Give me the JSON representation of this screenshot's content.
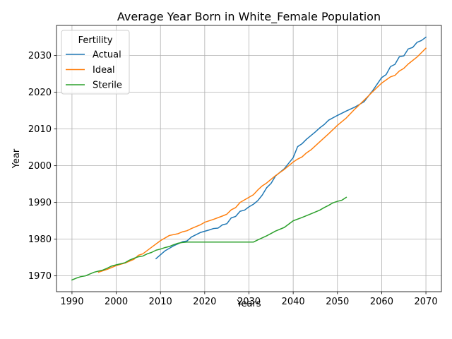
{
  "chart_data": {
    "type": "line",
    "title": "Average Year Born in White_Female Population",
    "xlabel": "Years",
    "ylabel": "Year",
    "xlim": [
      1986.5,
      2073.5
    ],
    "ylim": [
      1965.7,
      2038.2
    ],
    "xticks": [
      1990,
      2000,
      2010,
      2020,
      2030,
      2040,
      2050,
      2060,
      2070
    ],
    "yticks": [
      1970,
      1980,
      1990,
      2000,
      2010,
      2020,
      2030
    ],
    "grid": true,
    "legend": {
      "title": "Fertility",
      "position": "upper-left"
    },
    "series": [
      {
        "name": "Actual",
        "color": "#1f77b4",
        "x": [
          2009,
          2011,
          2013,
          2015,
          2016,
          2017,
          2019,
          2021,
          2022,
          2023,
          2024,
          2025,
          2026,
          2027,
          2028,
          2029,
          2030,
          2031,
          2032,
          2033,
          2034,
          2035,
          2036,
          2038,
          2040,
          2041,
          2042,
          2043,
          2045,
          2046,
          2047,
          2048,
          2050,
          2052,
          2054,
          2056,
          2058,
          2060,
          2061,
          2062,
          2063,
          2064,
          2065,
          2066,
          2067,
          2068,
          2069,
          2070
        ],
        "y": [
          1974.7,
          1976.8,
          1978.2,
          1979.3,
          1979.5,
          1980.6,
          1981.8,
          1982.5,
          1982.9,
          1983.0,
          1983.9,
          1984.2,
          1985.8,
          1986.2,
          1987.6,
          1987.9,
          1988.8,
          1989.5,
          1990.5,
          1992.0,
          1994.0,
          1995.2,
          1997.2,
          1999.2,
          2002.2,
          2005.2,
          2006.0,
          2007.2,
          2009.2,
          2010.3,
          2011.2,
          2012.4,
          2013.7,
          2014.9,
          2016.0,
          2017.4,
          2020.5,
          2024.0,
          2024.8,
          2027.0,
          2027.6,
          2029.7,
          2029.9,
          2031.8,
          2032.2,
          2033.6,
          2034.1,
          2035.0
        ]
      },
      {
        "name": "Ideal",
        "color": "#ff7f0e",
        "x": [
          1996,
          1998,
          2000,
          2002,
          2004,
          2005,
          2006,
          2008,
          2010,
          2012,
          2014,
          2015,
          2016,
          2017,
          2019,
          2020,
          2022,
          2024,
          2025,
          2026,
          2027,
          2028,
          2030,
          2031,
          2032,
          2033,
          2034,
          2036,
          2038,
          2040,
          2041,
          2042,
          2043,
          2044,
          2046,
          2048,
          2050,
          2052,
          2054,
          2056,
          2058,
          2060,
          2062,
          2063,
          2064,
          2065,
          2066,
          2068,
          2070
        ],
        "y": [
          1971.0,
          1971.8,
          1972.8,
          1973.5,
          1974.5,
          1975.6,
          1976.0,
          1977.8,
          1979.6,
          1981.0,
          1981.5,
          1982.0,
          1982.3,
          1982.9,
          1983.9,
          1984.6,
          1985.4,
          1986.3,
          1986.8,
          1988.0,
          1988.6,
          1990.0,
          1991.4,
          1992.1,
          1993.4,
          1994.5,
          1995.3,
          1997.3,
          1999.0,
          2001.0,
          2001.8,
          2002.4,
          2003.5,
          2004.3,
          2006.5,
          2008.7,
          2011.0,
          2013.0,
          2015.5,
          2017.8,
          2020.2,
          2022.5,
          2024.2,
          2024.6,
          2025.8,
          2026.5,
          2027.7,
          2029.6,
          2032.0
        ]
      },
      {
        "name": "Sterile",
        "color": "#2ca02c",
        "x": [
          1990,
          1991,
          1992,
          1993,
          1994,
          1995,
          1996,
          1997,
          1998,
          1999,
          2000,
          2001,
          2002,
          2003,
          2004,
          2005,
          2006,
          2007,
          2008,
          2009,
          2010,
          2011,
          2012,
          2013,
          2014,
          2015,
          2016,
          2020,
          2025,
          2031,
          2032,
          2034,
          2036,
          2038,
          2040,
          2042,
          2044,
          2046,
          2047,
          2048,
          2049,
          2050,
          2051,
          2052
        ],
        "y": [
          1968.9,
          1969.4,
          1969.8,
          1970.0,
          1970.5,
          1971.0,
          1971.3,
          1971.6,
          1972.1,
          1972.7,
          1973.0,
          1973.3,
          1973.6,
          1974.3,
          1974.8,
          1975.2,
          1975.4,
          1976.0,
          1976.4,
          1977.0,
          1977.3,
          1977.7,
          1978.0,
          1978.5,
          1978.9,
          1979.1,
          1979.2,
          1979.2,
          1979.2,
          1979.2,
          1979.8,
          1980.9,
          1982.2,
          1983.2,
          1985.0,
          1985.9,
          1986.9,
          1987.9,
          1988.6,
          1989.2,
          1989.9,
          1990.3,
          1990.6,
          1991.4
        ]
      }
    ]
  }
}
